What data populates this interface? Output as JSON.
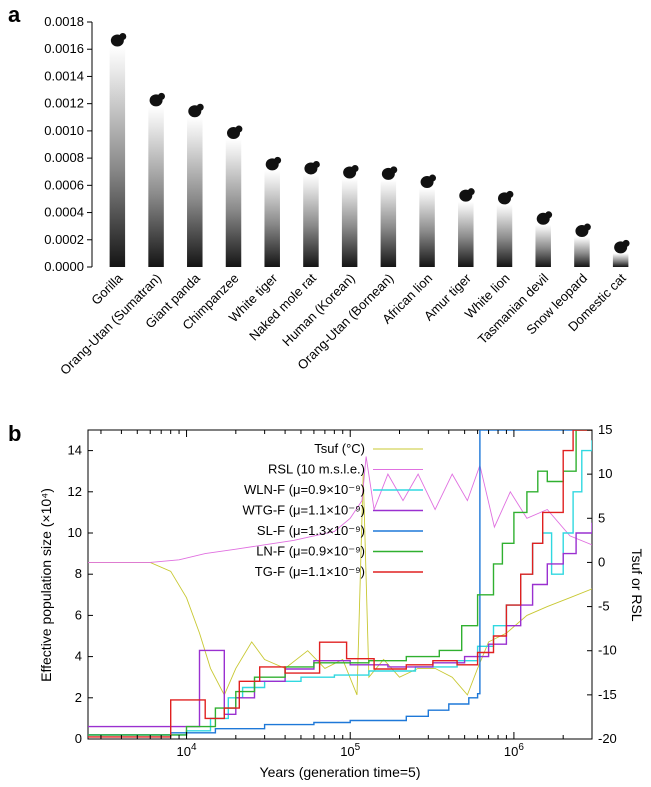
{
  "panel_a_label": "a",
  "panel_b_label": "b",
  "chart_data": [
    {
      "type": "bar",
      "panel": "a",
      "categories": [
        "Gorilla",
        "Orang-Utan (Sumatran)",
        "Giant panda",
        "Chimpanzee",
        "White tiger",
        "Naked mole rat",
        "Human (Korean)",
        "Orang-Utan (Bornean)",
        "African lion",
        "Amur tiger",
        "White lion",
        "Tasmanian devil",
        "Snow leopard",
        "Domestic cat"
      ],
      "values": [
        0.00162,
        0.00118,
        0.0011,
        0.00094,
        0.00071,
        0.00068,
        0.00065,
        0.00064,
        0.00058,
        0.00048,
        0.00046,
        0.00031,
        0.00022,
        0.0001
      ],
      "ylim": [
        0,
        0.0018
      ],
      "yticks": [
        "0.0000",
        "0.0002",
        "0.0004",
        "0.0006",
        "0.0008",
        "0.0010",
        "0.0012",
        "0.0014",
        "0.0016",
        "0.0018"
      ],
      "grid": false
    },
    {
      "type": "line",
      "panel": "b",
      "xlabel": "Years (generation time=5)",
      "ylabel": "Effective population size (×10⁴)",
      "y2label": "Tsuf or RSL",
      "xscale": "log",
      "xlim": [
        2500,
        3000000
      ],
      "ylim": [
        0,
        15
      ],
      "y2lim": [
        -20,
        15
      ],
      "xticks": [
        {
          "base": "10",
          "exp": "4",
          "value": 10000
        },
        {
          "base": "10",
          "exp": "5",
          "value": 100000
        },
        {
          "base": "10",
          "exp": "6",
          "value": 1000000
        }
      ],
      "yticks": [
        "0",
        "2",
        "4",
        "6",
        "8",
        "10",
        "12",
        "14"
      ],
      "y2ticks": [
        "-20",
        "-15",
        "-10",
        "-5",
        "0",
        "5",
        "10",
        "15"
      ],
      "legend_position": "top-center",
      "series": [
        {
          "name": "Tsuf (°C)",
          "color": "#c8c832",
          "axis": "right",
          "kind": "climate",
          "points": [
            [
              2500,
              0
            ],
            [
              6000,
              0
            ],
            [
              8000,
              -1
            ],
            [
              10000,
              -4
            ],
            [
              12000,
              -8
            ],
            [
              14000,
              -12
            ],
            [
              17000,
              -15
            ],
            [
              20000,
              -12
            ],
            [
              25000,
              -9
            ],
            [
              30000,
              -11
            ],
            [
              40000,
              -12
            ],
            [
              55000,
              -10
            ],
            [
              70000,
              -12
            ],
            [
              90000,
              -11
            ],
            [
              110000,
              -15
            ],
            [
              120000,
              10
            ],
            [
              130000,
              -13
            ],
            [
              160000,
              -11
            ],
            [
              200000,
              -13
            ],
            [
              260000,
              -12
            ],
            [
              330000,
              -12
            ],
            [
              420000,
              -13
            ],
            [
              520000,
              -15
            ],
            [
              600000,
              -12
            ],
            [
              700000,
              -9
            ],
            [
              900000,
              -8
            ],
            [
              1200000,
              -6
            ],
            [
              1600000,
              -5
            ],
            [
              2200000,
              -4
            ],
            [
              3000000,
              -3
            ]
          ]
        },
        {
          "name": "RSL (10 m.s.l.e.)",
          "color": "#e070e0",
          "axis": "right",
          "kind": "climate",
          "points": [
            [
              2500,
              0
            ],
            [
              6000,
              0
            ],
            [
              9000,
              0.3
            ],
            [
              13000,
              1
            ],
            [
              20000,
              1.5
            ],
            [
              30000,
              2
            ],
            [
              45000,
              2.5
            ],
            [
              60000,
              3
            ],
            [
              80000,
              3.5
            ],
            [
              100000,
              5
            ],
            [
              118000,
              7
            ],
            [
              125000,
              12
            ],
            [
              140000,
              6
            ],
            [
              170000,
              10
            ],
            [
              210000,
              7
            ],
            [
              260000,
              10
            ],
            [
              330000,
              6
            ],
            [
              420000,
              10
            ],
            [
              520000,
              7
            ],
            [
              620000,
              11
            ],
            [
              760000,
              4
            ],
            [
              950000,
              8
            ],
            [
              1200000,
              5
            ],
            [
              1600000,
              6
            ],
            [
              2200000,
              3
            ],
            [
              3000000,
              2
            ]
          ]
        },
        {
          "name": "WLN-F (μ=0.9×10⁻⁹)",
          "color": "#30d8e0",
          "axis": "left",
          "kind": "step",
          "points": [
            [
              2500,
              0.2
            ],
            [
              10000,
              0.4
            ],
            [
              14000,
              1.0
            ],
            [
              18000,
              2.0
            ],
            [
              22000,
              2.5
            ],
            [
              30000,
              2.8
            ],
            [
              50000,
              3.0
            ],
            [
              80000,
              3.1
            ],
            [
              130000,
              3.3
            ],
            [
              250000,
              3.5
            ],
            [
              450000,
              3.8
            ],
            [
              600000,
              4.5
            ],
            [
              750000,
              5.5
            ],
            [
              900000,
              6.5
            ],
            [
              1100000,
              8.0
            ],
            [
              1300000,
              9.5
            ],
            [
              1500000,
              10.0
            ],
            [
              1700000,
              8.0
            ],
            [
              2000000,
              10.0
            ],
            [
              2300000,
              12.0
            ],
            [
              2600000,
              14.0
            ],
            [
              3000000,
              14.5
            ]
          ]
        },
        {
          "name": "WTG-F (μ=1.1×10⁻⁹)",
          "color": "#9a30d0",
          "axis": "left",
          "kind": "step",
          "points": [
            [
              2500,
              0.6
            ],
            [
              12000,
              4.3
            ],
            [
              17000,
              1.2
            ],
            [
              20000,
              2.0
            ],
            [
              26000,
              2.8
            ],
            [
              40000,
              3.4
            ],
            [
              60000,
              3.8
            ],
            [
              100000,
              3.6
            ],
            [
              170000,
              3.5
            ],
            [
              320000,
              3.7
            ],
            [
              500000,
              4.0
            ],
            [
              700000,
              4.6
            ],
            [
              900000,
              5.5
            ],
            [
              1100000,
              6.5
            ],
            [
              1300000,
              7.5
            ],
            [
              1600000,
              8.5
            ],
            [
              2000000,
              9.0
            ],
            [
              2400000,
              10.0
            ],
            [
              3000000,
              10.5
            ]
          ]
        },
        {
          "name": "SL-F (μ=1.3×10⁻⁹)",
          "color": "#1e78d8",
          "axis": "left",
          "kind": "step",
          "points": [
            [
              2500,
              0.2
            ],
            [
              8000,
              0.3
            ],
            [
              15000,
              0.5
            ],
            [
              30000,
              0.7
            ],
            [
              60000,
              0.8
            ],
            [
              100000,
              0.9
            ],
            [
              160000,
              0.9
            ],
            [
              220000,
              1.1
            ],
            [
              300000,
              1.4
            ],
            [
              400000,
              1.7
            ],
            [
              530000,
              2.0
            ],
            [
              600000,
              2.2
            ],
            [
              620000,
              15.0
            ],
            [
              3000000,
              15.0
            ]
          ]
        },
        {
          "name": "LN-F (μ=0.9×10⁻⁹)",
          "color": "#30b030",
          "axis": "left",
          "kind": "step",
          "points": [
            [
              2500,
              0.2
            ],
            [
              10000,
              0.6
            ],
            [
              15000,
              1.5
            ],
            [
              20000,
              2.3
            ],
            [
              26000,
              3.0
            ],
            [
              40000,
              3.5
            ],
            [
              60000,
              3.7
            ],
            [
              90000,
              3.7
            ],
            [
              130000,
              3.8
            ],
            [
              220000,
              4.0
            ],
            [
              350000,
              4.3
            ],
            [
              480000,
              5.5
            ],
            [
              600000,
              7.0
            ],
            [
              750000,
              8.5
            ],
            [
              850000,
              9.5
            ],
            [
              1000000,
              11.0
            ],
            [
              1200000,
              12.0
            ],
            [
              1400000,
              13.0
            ],
            [
              1600000,
              12.5
            ],
            [
              2000000,
              13.0
            ],
            [
              2400000,
              15.0
            ],
            [
              3000000,
              15.0
            ]
          ]
        },
        {
          "name": "TG-F (μ=1.1×10⁻⁹)",
          "color": "#e02020",
          "axis": "left",
          "kind": "step",
          "points": [
            [
              2500,
              0.1
            ],
            [
              8000,
              1.9
            ],
            [
              13000,
              1.0
            ],
            [
              17000,
              1.5
            ],
            [
              21000,
              2.8
            ],
            [
              28000,
              3.5
            ],
            [
              40000,
              3.2
            ],
            [
              65000,
              4.7
            ],
            [
              95000,
              3.9
            ],
            [
              140000,
              3.4
            ],
            [
              220000,
              3.6
            ],
            [
              320000,
              3.8
            ],
            [
              450000,
              3.6
            ],
            [
              600000,
              4.2
            ],
            [
              750000,
              5.0
            ],
            [
              900000,
              6.5
            ],
            [
              1100000,
              8.0
            ],
            [
              1300000,
              9.5
            ],
            [
              1500000,
              11.0
            ],
            [
              1700000,
              11.0
            ],
            [
              2000000,
              14.0
            ],
            [
              2300000,
              15.0
            ],
            [
              3000000,
              15.0
            ]
          ]
        }
      ]
    }
  ]
}
